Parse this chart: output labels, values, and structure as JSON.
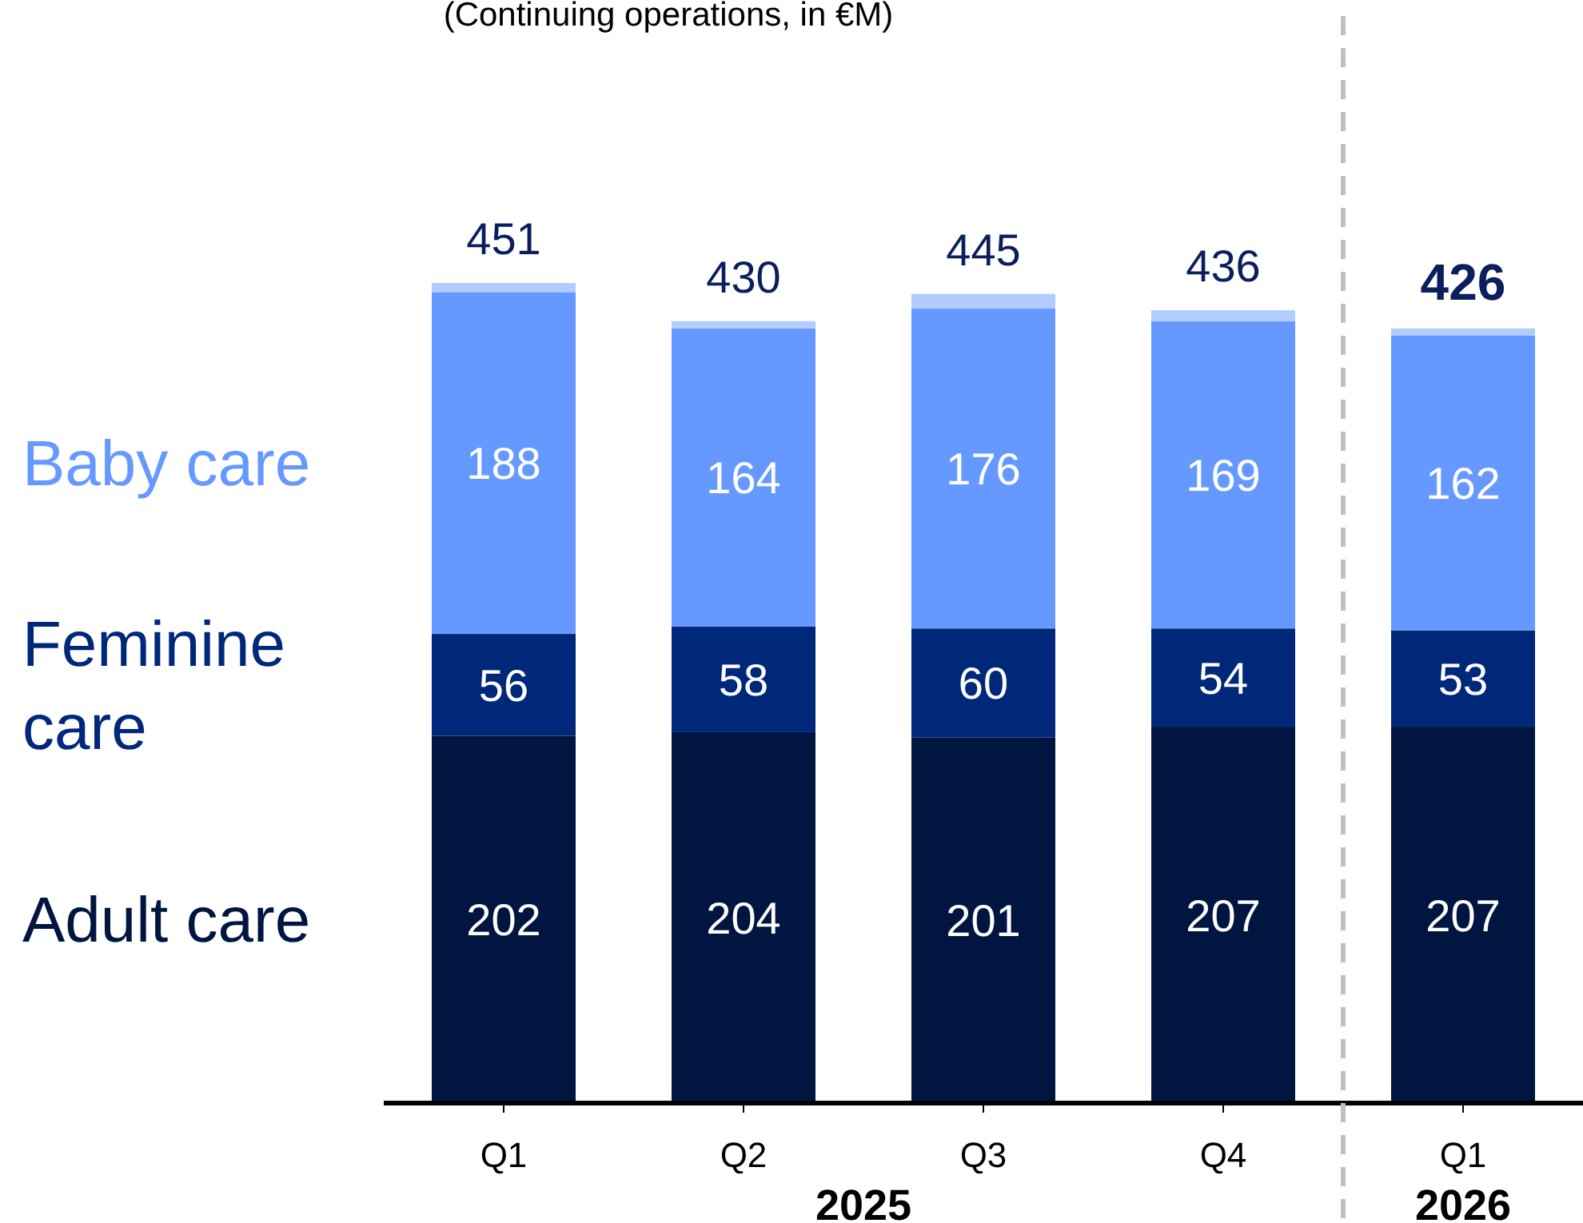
{
  "chart_data": {
    "type": "bar",
    "stacked": true,
    "title": "(Continuing operations, in €M)",
    "categories": [
      "Q1",
      "Q2",
      "Q3",
      "Q4",
      "Q1"
    ],
    "series": [
      {
        "name": "Adult care",
        "color": "#001641",
        "values": [
          202,
          204,
          201,
          207,
          207
        ],
        "value_labels": [
          "202",
          "204",
          "201",
          "207",
          "207"
        ]
      },
      {
        "name": "Feminine care",
        "color": "#00287a",
        "values": [
          56,
          58,
          60,
          54,
          53
        ],
        "value_labels": [
          "56",
          "58",
          "60",
          "54",
          "53"
        ]
      },
      {
        "name": "Baby care",
        "color": "#6699ff",
        "values": [
          188,
          164,
          176,
          169,
          162
        ],
        "value_labels": [
          "188",
          "164",
          "176",
          "169",
          "162"
        ]
      },
      {
        "color": "#b3ccff",
        "values": [
          5,
          4,
          8,
          6,
          4
        ]
      }
    ],
    "totals": [
      "451",
      "430",
      "445",
      "436",
      "426"
    ],
    "annotations": [
      "2025",
      "2026"
    ],
    "legend": "left"
  }
}
